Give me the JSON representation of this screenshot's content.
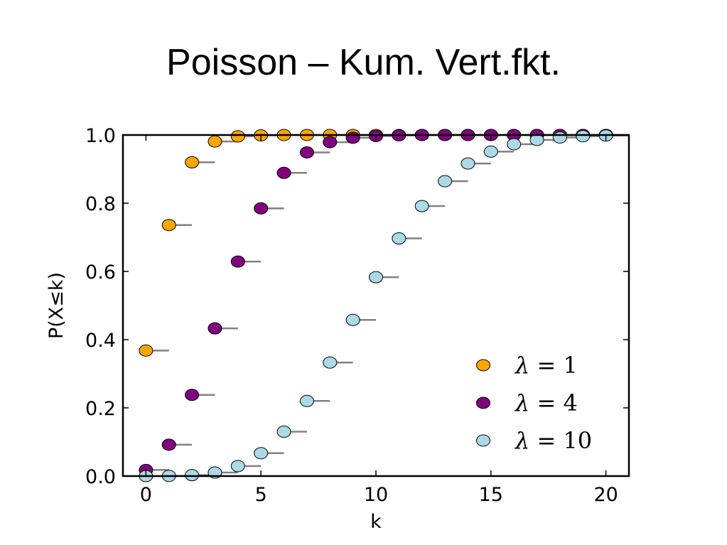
{
  "title": "Poisson – Kum. Vert.fkt.",
  "chart_data": {
    "type": "scatter",
    "xlabel": "k",
    "ylabel": "P(X≤k)",
    "xlim": [
      -1,
      21
    ],
    "ylim": [
      0.0,
      1.0
    ],
    "xticks": [
      0,
      5,
      10,
      15,
      20
    ],
    "yticks": [
      0.0,
      0.2,
      0.4,
      0.6,
      0.8,
      1.0
    ],
    "xtick_labels": [
      "0",
      "5",
      "10",
      "15",
      "20"
    ],
    "ytick_labels": [
      "0.0",
      "0.2",
      "0.4",
      "0.6",
      "0.8",
      "1.0"
    ],
    "legend_position": "lower-right",
    "step_segments": true,
    "x": [
      0,
      1,
      2,
      3,
      4,
      5,
      6,
      7,
      8,
      9,
      10,
      11,
      12,
      13,
      14,
      15,
      16,
      17,
      18,
      19,
      20
    ],
    "series": [
      {
        "name": "λ = 1",
        "legend_symbol": "λ",
        "legend_value": "1",
        "color": "#FFA500",
        "values": [
          0.368,
          0.736,
          0.92,
          0.981,
          0.996,
          0.999,
          1.0,
          1.0,
          1.0,
          1.0,
          1.0,
          1.0,
          1.0,
          1.0,
          1.0,
          1.0,
          1.0,
          1.0,
          1.0,
          1.0,
          1.0
        ]
      },
      {
        "name": "λ = 4",
        "legend_symbol": "λ",
        "legend_value": "4",
        "color": "#800080",
        "values": [
          0.018,
          0.092,
          0.238,
          0.433,
          0.629,
          0.785,
          0.889,
          0.949,
          0.979,
          0.992,
          0.997,
          0.999,
          1.0,
          1.0,
          1.0,
          1.0,
          1.0,
          1.0,
          1.0,
          1.0,
          1.0
        ]
      },
      {
        "name": "λ = 10",
        "legend_symbol": "λ",
        "legend_value": "10",
        "color": "#ADD8E6",
        "values": [
          4.54e-05,
          0.0005,
          0.0028,
          0.0103,
          0.0293,
          0.0671,
          0.1301,
          0.2202,
          0.3328,
          0.4579,
          0.583,
          0.6968,
          0.7916,
          0.8645,
          0.9165,
          0.9513,
          0.973,
          0.9857,
          0.9928,
          0.9965,
          0.9984
        ]
      }
    ]
  }
}
